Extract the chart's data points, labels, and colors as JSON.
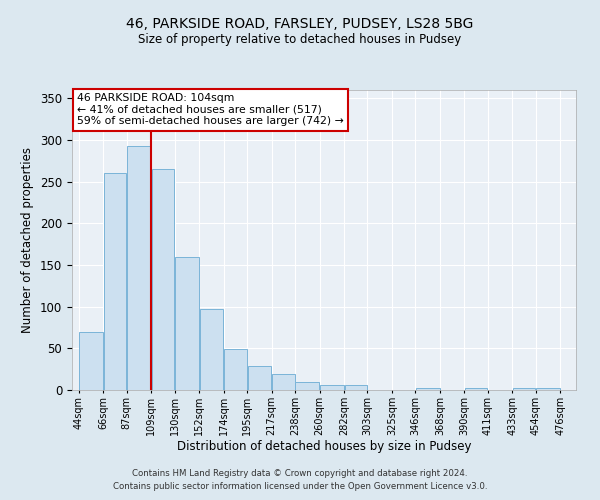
{
  "title1": "46, PARKSIDE ROAD, FARSLEY, PUDSEY, LS28 5BG",
  "title2": "Size of property relative to detached houses in Pudsey",
  "xlabel": "Distribution of detached houses by size in Pudsey",
  "ylabel": "Number of detached properties",
  "bar_left_edges": [
    44,
    66,
    87,
    109,
    130,
    152,
    174,
    195,
    217,
    238,
    260,
    282,
    303,
    325,
    346,
    368,
    390,
    411,
    433,
    454
  ],
  "bar_heights": [
    70,
    260,
    293,
    265,
    160,
    97,
    49,
    29,
    19,
    10,
    6,
    6,
    0,
    0,
    3,
    0,
    3,
    0,
    2,
    2
  ],
  "bar_widths": [
    22,
    21,
    22,
    21,
    22,
    22,
    21,
    22,
    21,
    22,
    22,
    21,
    22,
    21,
    22,
    22,
    21,
    22,
    21,
    22
  ],
  "tick_labels": [
    "44sqm",
    "66sqm",
    "87sqm",
    "109sqm",
    "130sqm",
    "152sqm",
    "174sqm",
    "195sqm",
    "217sqm",
    "238sqm",
    "260sqm",
    "282sqm",
    "303sqm",
    "325sqm",
    "346sqm",
    "368sqm",
    "390sqm",
    "411sqm",
    "433sqm",
    "454sqm",
    "476sqm"
  ],
  "tick_positions": [
    44,
    66,
    87,
    109,
    130,
    152,
    174,
    195,
    217,
    238,
    260,
    282,
    303,
    325,
    346,
    368,
    390,
    411,
    433,
    454,
    476
  ],
  "ylim": [
    0,
    360
  ],
  "xlim": [
    38,
    490
  ],
  "bar_color": "#cce0f0",
  "bar_edge_color": "#7ab4d8",
  "vline_x": 109,
  "vline_color": "#cc0000",
  "annotation_title": "46 PARKSIDE ROAD: 104sqm",
  "annotation_line1": "← 41% of detached houses are smaller (517)",
  "annotation_line2": "59% of semi-detached houses are larger (742) →",
  "annotation_box_color": "#ffffff",
  "annotation_box_edge_color": "#cc0000",
  "footer1": "Contains HM Land Registry data © Crown copyright and database right 2024.",
  "footer2": "Contains public sector information licensed under the Open Government Licence v3.0.",
  "bg_color": "#dce8f0",
  "plot_bg_color": "#eaf0f6"
}
